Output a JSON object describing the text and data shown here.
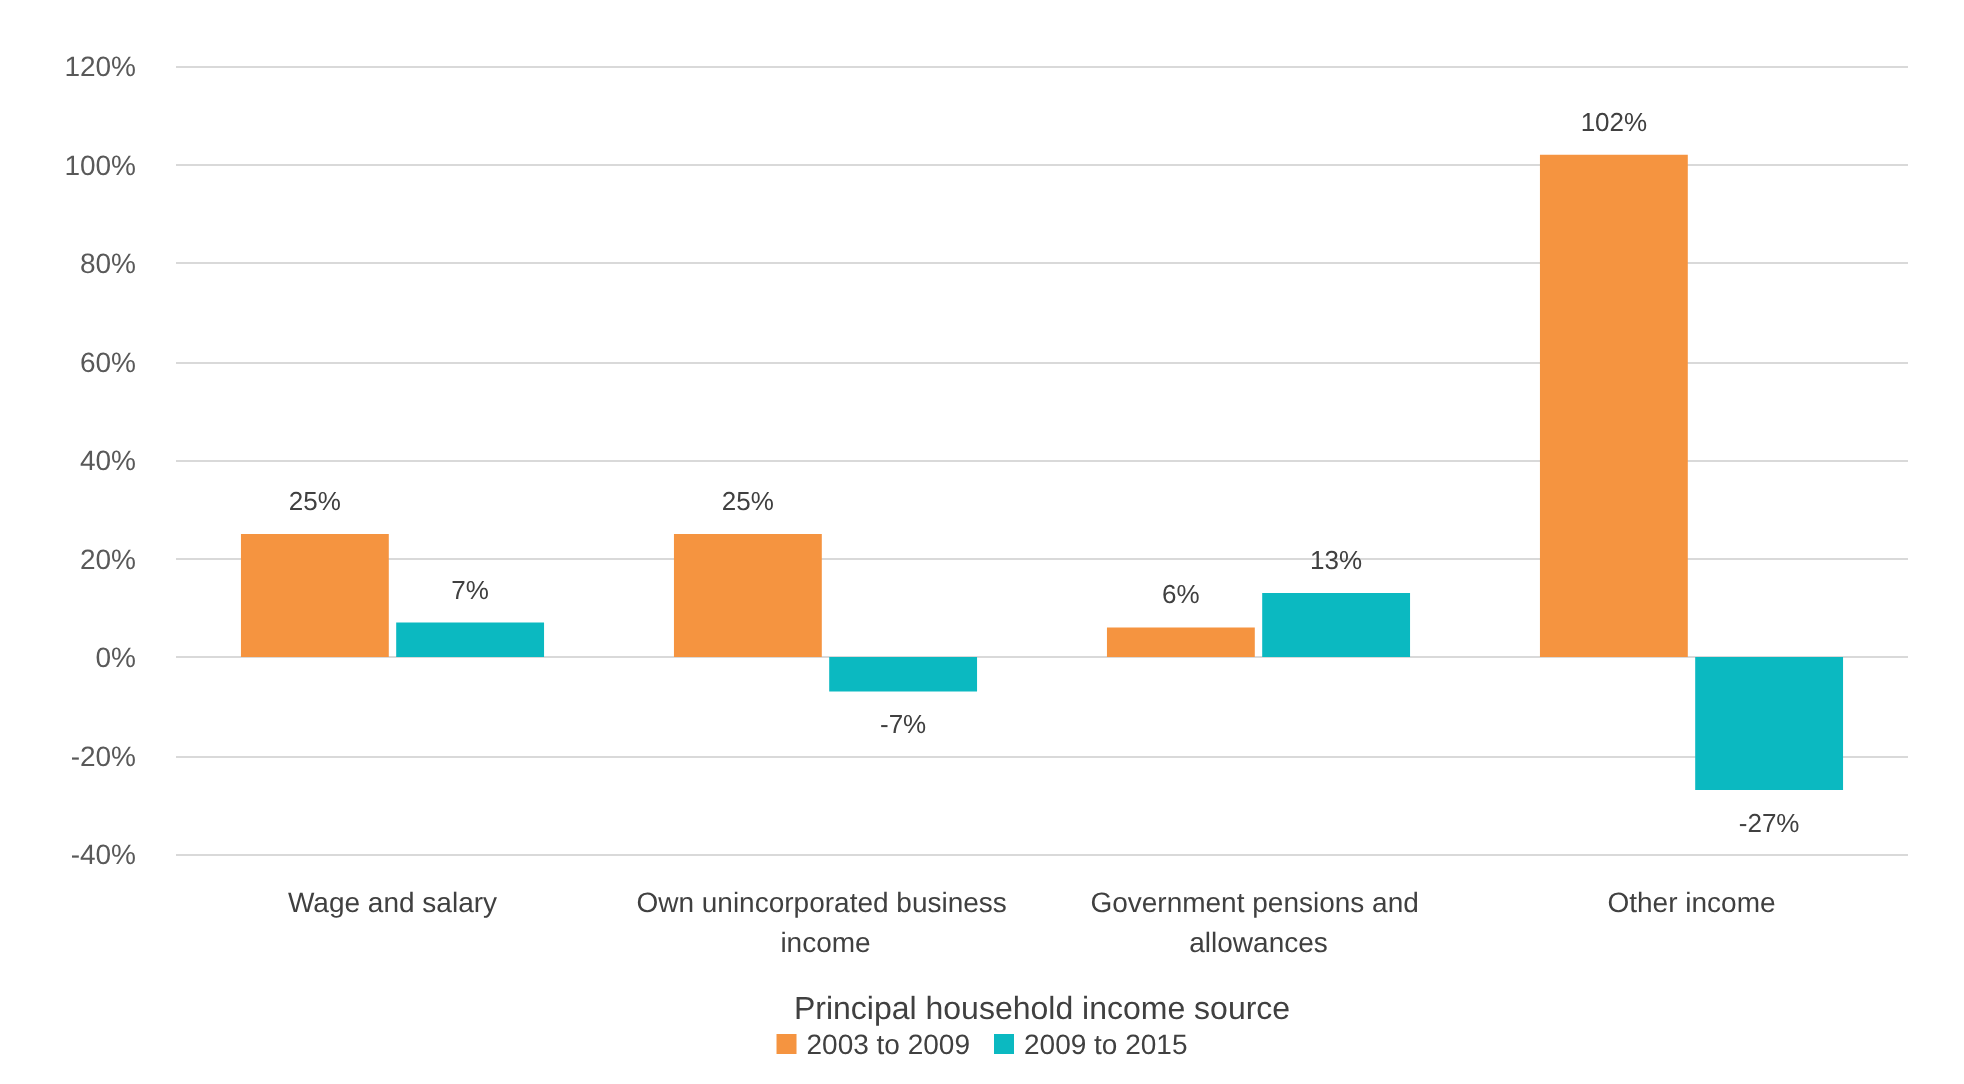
{
  "chart_data": {
    "type": "bar",
    "xlabel": "Principal household income source",
    "categories": [
      "Wage and salary",
      "Own unincorporated business income",
      "Government pensions and allowances",
      "Other income"
    ],
    "series": [
      {
        "name": "2003 to 2009",
        "color": "#f59440",
        "values": [
          25,
          25,
          6,
          102
        ],
        "value_labels": [
          "25%",
          "25%",
          "6%",
          "102%"
        ]
      },
      {
        "name": "2009 to 2015",
        "color": "#0bb9c1",
        "values": [
          7,
          -7,
          13,
          -27
        ],
        "value_labels": [
          "7%",
          "-7%",
          "13%",
          "-27%"
        ]
      }
    ],
    "ylim": [
      -40,
      120
    ],
    "yticks": [
      {
        "value": -40,
        "label": "-40%"
      },
      {
        "value": -20,
        "label": "-20%"
      },
      {
        "value": 0,
        "label": "0%"
      },
      {
        "value": 20,
        "label": "20%"
      },
      {
        "value": 40,
        "label": "40%"
      },
      {
        "value": 60,
        "label": "60%"
      },
      {
        "value": 80,
        "label": "80%"
      },
      {
        "value": 100,
        "label": "100%"
      },
      {
        "value": 120,
        "label": "120%"
      }
    ],
    "grid": "y",
    "legend": "bottom"
  }
}
